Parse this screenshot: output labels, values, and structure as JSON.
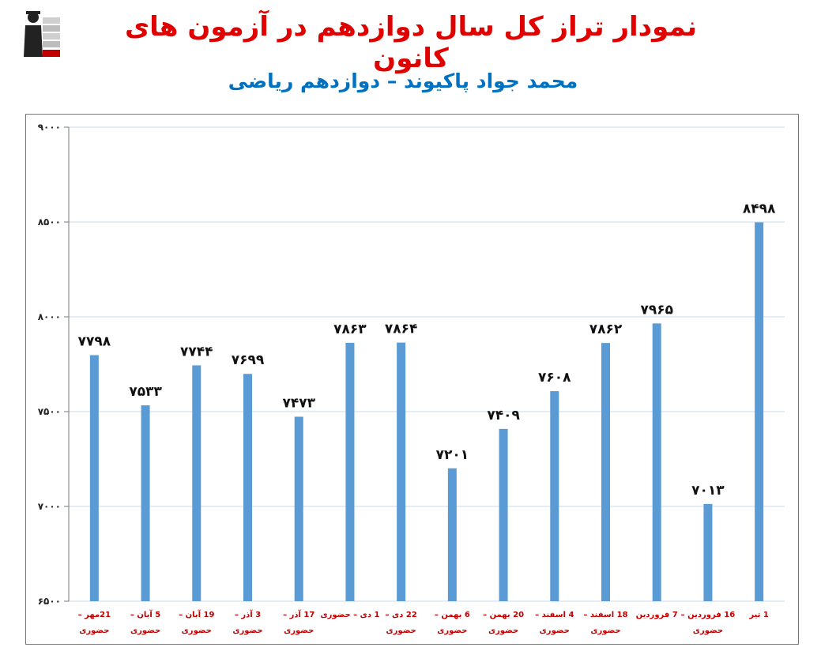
{
  "header": {
    "title": "نمودار تراز کل سال دوازدهم در آزمون های کانون",
    "subtitle": "محمد جواد پاکیوند – دوازدهم ریاضی",
    "logo_icon": "kanoon-logo-icon"
  },
  "colors": {
    "title": "#e00000",
    "subtitle": "#0070c0",
    "bar": "#5b9bd5",
    "grid": "#c9d9ee",
    "category_text": "#c00000"
  },
  "chart_data": {
    "type": "bar",
    "title": "",
    "xlabel": "",
    "ylabel": "",
    "ylim": [
      6500,
      9000
    ],
    "yticks": [
      6500,
      7000,
      7500,
      8000,
      8500,
      9000
    ],
    "ytick_labels": [
      "۶۵۰۰",
      "۷۰۰۰",
      "۷۵۰۰",
      "۸۰۰۰",
      "۸۵۰۰",
      "۹۰۰۰"
    ],
    "grid": true,
    "legend": "none",
    "categories": [
      [
        "21مهر –",
        "حضوری"
      ],
      [
        "5 آبان –",
        "حضوری"
      ],
      [
        "19 آبان –",
        "حضوری"
      ],
      [
        "3 آذر –",
        "حضوری"
      ],
      [
        "17 آذر –",
        "حضوری"
      ],
      [
        "1 دی – حضوری"
      ],
      [
        "22 دی –",
        "حضوری"
      ],
      [
        "6 بهمن –",
        "حضوری"
      ],
      [
        "20 بهمن –",
        "حضوری"
      ],
      [
        "4 اسفند –",
        "حضوری"
      ],
      [
        "18 اسفند –",
        "حضوری"
      ],
      [
        "7 فروردین"
      ],
      [
        "16 فروردین –",
        "حضوری"
      ],
      [
        "1 تیر"
      ]
    ],
    "values": [
      7798,
      7533,
      7744,
      7699,
      7473,
      7863,
      7864,
      7201,
      7409,
      7608,
      7862,
      7965,
      7013,
      8498
    ],
    "data_labels": [
      "۷۷۹۸",
      "۷۵۳۳",
      "۷۷۴۴",
      "۷۶۹۹",
      "۷۴۷۳",
      "۷۸۶۳",
      "۷۸۶۴",
      "۷۲۰۱",
      "۷۴۰۹",
      "۷۶۰۸",
      "۷۸۶۲",
      "۷۹۶۵",
      "۷۰۱۳",
      "۸۴۹۸"
    ]
  }
}
